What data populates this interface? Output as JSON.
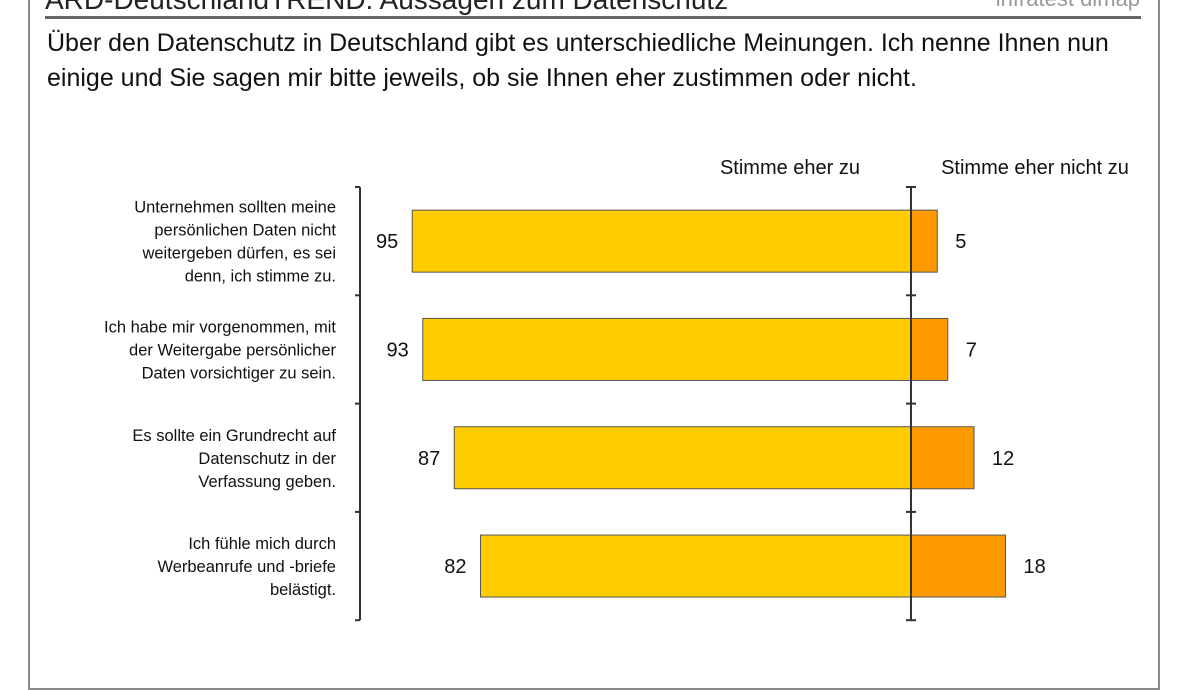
{
  "header": {
    "title": "ARD-DeutschlandTREND: Aussagen zum Datenschutz",
    "brand": "infratest dimap"
  },
  "question": "Über den Datenschutz in Deutschland gibt es unterschiedliche Meinungen. Ich nenne Ihnen nun einige und Sie sagen mir bitte jeweils, ob sie Ihnen eher zustimmen oder nicht.",
  "chart_data": {
    "type": "bar",
    "orientation": "horizontal-diverging",
    "categories": [
      [
        "Unternehmen sollten meine",
        "persönlichen Daten nicht",
        "weitergeben dürfen, es sei",
        "denn, ich stimme zu."
      ],
      [
        "Ich habe mir vorgenommen, mit",
        "der Weitergabe persönlicher",
        "Daten vorsichtiger zu sein."
      ],
      [
        "Es sollte ein Grundrecht auf",
        "Datenschutz in der",
        "Verfassung geben."
      ],
      [
        "Ich fühle mich durch",
        "Werbeanrufe und -briefe",
        "belästigt."
      ]
    ],
    "series": [
      {
        "name": "Stimme eher zu",
        "values": [
          95,
          93,
          87,
          82
        ],
        "color": "#ffcc00"
      },
      {
        "name": "Stimme eher nicht zu",
        "values": [
          5,
          7,
          12,
          18
        ],
        "color": "#ff9900"
      }
    ]
  }
}
